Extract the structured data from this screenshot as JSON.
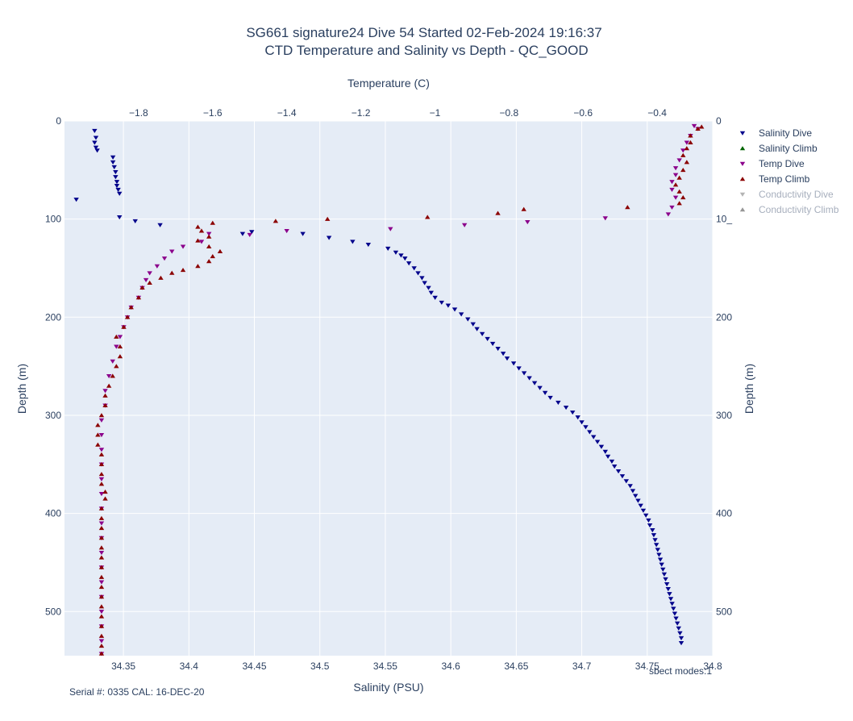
{
  "chart_data": {
    "type": "scatter",
    "title_line1": "SG661 signature24 Dive 54 Started 02-Feb-2024 19:16:37",
    "title_line2": "CTD Temperature and Salinity vs Depth - QC_GOOD",
    "xlabel_bottom": "Salinity (PSU)",
    "xlabel_top": "Temperature (C)",
    "ylabel_left": "Depth (m)",
    "ylabel_right": "Depth (m)",
    "x_bottom_range": [
      34.305,
      34.8
    ],
    "x_top_range": [
      -2.0,
      -0.25
    ],
    "y_range": [
      545,
      0
    ],
    "x_bottom_ticks": [
      "34.35",
      "34.4",
      "34.45",
      "34.5",
      "34.55",
      "34.6",
      "34.65",
      "34.7",
      "34.75",
      "34.8"
    ],
    "x_top_ticks": [
      "−1.8",
      "−1.6",
      "−1.4",
      "−1.2",
      "−1",
      "−0.8",
      "−0.6",
      "−0.4"
    ],
    "y_left_ticks": [
      "0",
      "100",
      "200",
      "300",
      "400",
      "500"
    ],
    "y_right_ticks": [
      "0",
      "10_",
      "200",
      "300",
      "400",
      "500"
    ],
    "legend_position": "top-right",
    "annotation_right": "sbect modes:1",
    "annotation_left": "Serial #: 0335  CAL: 16-DEC-20",
    "colors": {
      "salinity_dive": "#00008b",
      "salinity_climb": "#006400",
      "temp_dive": "#8b008b",
      "temp_climb": "#8b0000",
      "conductivity_dive": "#b4b4b4",
      "conductivity_climb": "#969696",
      "plot_bg": "#e5ecf6",
      "text": "#2a3f5f"
    },
    "legend": [
      {
        "name": "Salinity Dive",
        "color": "#00008b",
        "marker": "triangle-down",
        "muted": false
      },
      {
        "name": "Salinity Climb",
        "color": "#006400",
        "marker": "triangle-up",
        "muted": false
      },
      {
        "name": "Temp Dive",
        "color": "#8b008b",
        "marker": "triangle-down",
        "muted": false
      },
      {
        "name": "Temp Climb",
        "color": "#8b0000",
        "marker": "triangle-up",
        "muted": false
      },
      {
        "name": "Conductivity Dive",
        "color": "#b4b4b4",
        "marker": "triangle-down",
        "muted": true
      },
      {
        "name": "Conductivity Climb",
        "color": "#969696",
        "marker": "triangle-up",
        "muted": true
      }
    ],
    "series": [
      {
        "name": "Salinity Dive",
        "axis": "salinity",
        "marker": "triangle-down",
        "color": "#00008b",
        "points": [
          [
            34.328,
            10
          ],
          [
            34.329,
            17
          ],
          [
            34.328,
            22
          ],
          [
            34.329,
            27
          ],
          [
            34.33,
            30
          ],
          [
            34.342,
            37
          ],
          [
            34.342,
            42
          ],
          [
            34.343,
            47
          ],
          [
            34.344,
            52
          ],
          [
            34.344,
            57
          ],
          [
            34.345,
            62
          ],
          [
            34.345,
            66
          ],
          [
            34.346,
            70
          ],
          [
            34.347,
            74
          ],
          [
            34.314,
            80
          ],
          [
            34.347,
            98
          ],
          [
            34.359,
            102
          ],
          [
            34.378,
            106
          ],
          [
            34.448,
            113
          ],
          [
            34.441,
            115
          ],
          [
            34.487,
            115
          ],
          [
            34.507,
            119
          ],
          [
            34.525,
            123
          ],
          [
            34.537,
            126
          ],
          [
            34.552,
            130
          ],
          [
            34.558,
            134
          ],
          [
            34.562,
            137
          ],
          [
            34.565,
            140
          ],
          [
            34.568,
            145
          ],
          [
            34.572,
            150
          ],
          [
            34.575,
            155
          ],
          [
            34.578,
            160
          ],
          [
            34.58,
            165
          ],
          [
            34.583,
            170
          ],
          [
            34.585,
            175
          ],
          [
            34.588,
            180
          ],
          [
            34.593,
            185
          ],
          [
            34.598,
            188
          ],
          [
            34.603,
            192
          ],
          [
            34.608,
            197
          ],
          [
            34.613,
            202
          ],
          [
            34.617,
            207
          ],
          [
            34.62,
            212
          ],
          [
            34.624,
            217
          ],
          [
            34.628,
            222
          ],
          [
            34.632,
            227
          ],
          [
            34.636,
            232
          ],
          [
            34.64,
            237
          ],
          [
            34.643,
            242
          ],
          [
            34.648,
            247
          ],
          [
            34.652,
            252
          ],
          [
            34.656,
            257
          ],
          [
            34.66,
            262
          ],
          [
            34.664,
            267
          ],
          [
            34.668,
            272
          ],
          [
            34.672,
            277
          ],
          [
            34.676,
            282
          ],
          [
            34.682,
            287
          ],
          [
            34.688,
            292
          ],
          [
            34.693,
            297
          ],
          [
            34.697,
            302
          ],
          [
            34.7,
            307
          ],
          [
            34.703,
            312
          ],
          [
            34.706,
            317
          ],
          [
            34.709,
            322
          ],
          [
            34.712,
            327
          ],
          [
            34.715,
            332
          ],
          [
            34.718,
            337
          ],
          [
            34.72,
            342
          ],
          [
            34.723,
            347
          ],
          [
            34.725,
            352
          ],
          [
            34.728,
            357
          ],
          [
            34.731,
            362
          ],
          [
            34.734,
            367
          ],
          [
            34.737,
            372
          ],
          [
            34.739,
            377
          ],
          [
            34.741,
            382
          ],
          [
            34.743,
            387
          ],
          [
            34.745,
            392
          ],
          [
            34.747,
            397
          ],
          [
            34.749,
            402
          ],
          [
            34.751,
            407
          ],
          [
            34.752,
            412
          ],
          [
            34.754,
            417
          ],
          [
            34.755,
            422
          ],
          [
            34.756,
            427
          ],
          [
            34.757,
            432
          ],
          [
            34.758,
            437
          ],
          [
            34.759,
            442
          ],
          [
            34.76,
            447
          ],
          [
            34.761,
            452
          ],
          [
            34.762,
            457
          ],
          [
            34.763,
            462
          ],
          [
            34.764,
            467
          ],
          [
            34.765,
            472
          ],
          [
            34.766,
            477
          ],
          [
            34.767,
            482
          ],
          [
            34.768,
            487
          ],
          [
            34.769,
            492
          ],
          [
            34.77,
            497
          ],
          [
            34.771,
            502
          ],
          [
            34.772,
            507
          ],
          [
            34.773,
            512
          ],
          [
            34.774,
            517
          ],
          [
            34.775,
            522
          ],
          [
            34.776,
            527
          ],
          [
            34.776,
            532
          ]
        ]
      },
      {
        "name": "Temp Dive",
        "axis": "temperature",
        "marker": "triangle-down",
        "color": "#8b008b",
        "points": [
          [
            -0.3,
            5
          ],
          [
            -0.29,
            8
          ],
          [
            -0.31,
            15
          ],
          [
            -0.32,
            22
          ],
          [
            -0.33,
            30
          ],
          [
            -0.34,
            40
          ],
          [
            -0.35,
            48
          ],
          [
            -0.35,
            55
          ],
          [
            -0.36,
            62
          ],
          [
            -0.36,
            70
          ],
          [
            -0.35,
            78
          ],
          [
            -0.36,
            88
          ],
          [
            -0.37,
            95
          ],
          [
            -0.54,
            99
          ],
          [
            -0.75,
            103
          ],
          [
            -0.92,
            106
          ],
          [
            -1.12,
            110
          ],
          [
            -1.4,
            112
          ],
          [
            -1.5,
            116
          ],
          [
            -1.61,
            115
          ],
          [
            -1.63,
            123
          ],
          [
            -1.68,
            128
          ],
          [
            -1.71,
            133
          ],
          [
            -1.73,
            140
          ],
          [
            -1.75,
            148
          ],
          [
            -1.77,
            155
          ],
          [
            -1.78,
            162
          ],
          [
            -1.79,
            170
          ],
          [
            -1.8,
            180
          ],
          [
            -1.82,
            190
          ],
          [
            -1.83,
            200
          ],
          [
            -1.84,
            210
          ],
          [
            -1.85,
            220
          ],
          [
            -1.86,
            230
          ],
          [
            -1.87,
            245
          ],
          [
            -1.88,
            260
          ],
          [
            -1.89,
            275
          ],
          [
            -1.89,
            290
          ],
          [
            -1.9,
            305
          ],
          [
            -1.9,
            320
          ],
          [
            -1.9,
            335
          ],
          [
            -1.9,
            350
          ],
          [
            -1.9,
            365
          ],
          [
            -1.9,
            380
          ],
          [
            -1.9,
            395
          ],
          [
            -1.9,
            410
          ],
          [
            -1.9,
            425
          ],
          [
            -1.9,
            440
          ],
          [
            -1.9,
            455
          ],
          [
            -1.9,
            470
          ],
          [
            -1.9,
            485
          ],
          [
            -1.9,
            500
          ],
          [
            -1.9,
            515
          ],
          [
            -1.9,
            530
          ],
          [
            -1.9,
            543
          ]
        ]
      },
      {
        "name": "Temp Climb",
        "axis": "temperature",
        "marker": "triangle-up",
        "color": "#8b0000",
        "points": [
          [
            -1.9,
            543
          ],
          [
            -1.9,
            535
          ],
          [
            -1.9,
            525
          ],
          [
            -1.9,
            515
          ],
          [
            -1.9,
            505
          ],
          [
            -1.9,
            495
          ],
          [
            -1.9,
            485
          ],
          [
            -1.9,
            475
          ],
          [
            -1.9,
            465
          ],
          [
            -1.9,
            455
          ],
          [
            -1.9,
            445
          ],
          [
            -1.9,
            435
          ],
          [
            -1.9,
            425
          ],
          [
            -1.9,
            415
          ],
          [
            -1.9,
            405
          ],
          [
            -1.9,
            395
          ],
          [
            -1.89,
            385
          ],
          [
            -1.89,
            378
          ],
          [
            -1.9,
            370
          ],
          [
            -1.9,
            360
          ],
          [
            -1.9,
            350
          ],
          [
            -1.9,
            340
          ],
          [
            -1.91,
            330
          ],
          [
            -1.91,
            320
          ],
          [
            -1.91,
            310
          ],
          [
            -1.9,
            300
          ],
          [
            -1.89,
            290
          ],
          [
            -1.89,
            280
          ],
          [
            -1.88,
            270
          ],
          [
            -1.87,
            260
          ],
          [
            -1.86,
            250
          ],
          [
            -1.85,
            240
          ],
          [
            -1.85,
            230
          ],
          [
            -1.86,
            220
          ],
          [
            -1.84,
            210
          ],
          [
            -1.83,
            200
          ],
          [
            -1.82,
            190
          ],
          [
            -1.8,
            180
          ],
          [
            -1.79,
            170
          ],
          [
            -1.77,
            165
          ],
          [
            -1.74,
            160
          ],
          [
            -1.71,
            155
          ],
          [
            -1.68,
            152
          ],
          [
            -1.64,
            148
          ],
          [
            -1.61,
            143
          ],
          [
            -1.6,
            138
          ],
          [
            -1.58,
            133
          ],
          [
            -1.61,
            128
          ],
          [
            -1.64,
            122
          ],
          [
            -1.61,
            118
          ],
          [
            -1.63,
            112
          ],
          [
            -1.64,
            108
          ],
          [
            -1.6,
            104
          ],
          [
            -1.43,
            102
          ],
          [
            -1.29,
            100
          ],
          [
            -1.02,
            98
          ],
          [
            -0.83,
            94
          ],
          [
            -0.76,
            90
          ],
          [
            -0.48,
            88
          ],
          [
            -0.34,
            84
          ],
          [
            -0.33,
            78
          ],
          [
            -0.34,
            72
          ],
          [
            -0.35,
            65
          ],
          [
            -0.34,
            58
          ],
          [
            -0.33,
            50
          ],
          [
            -0.32,
            42
          ],
          [
            -0.33,
            35
          ],
          [
            -0.32,
            28
          ],
          [
            -0.31,
            22
          ],
          [
            -0.31,
            15
          ],
          [
            -0.29,
            8
          ],
          [
            -0.28,
            6
          ]
        ]
      }
    ]
  }
}
